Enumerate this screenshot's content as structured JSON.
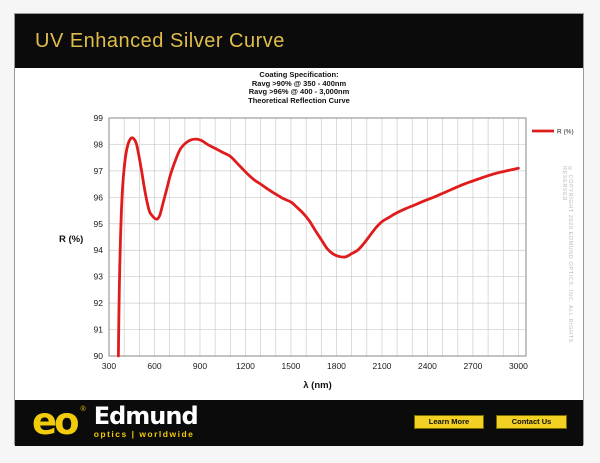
{
  "header": {
    "title": "UV Enhanced Silver Curve"
  },
  "chart": {
    "spec_lines": [
      "Coating Specification:",
      "Ravg >90% @ 350 - 400nm",
      "Ravg >96% @ 400 - 3,000nm",
      "Theoretical Reflection Curve"
    ],
    "copyright": "© COPYRIGHT 2020 EDMUND OPTICS, INC. ALL RIGHTS RESERVED"
  },
  "chart_data": {
    "type": "line",
    "title": "Coating Specification: Ravg >90% @ 350 - 400nm; Ravg >96% @ 400 - 3,000nm; Theoretical Reflection Curve",
    "xlabel": "λ (nm)",
    "ylabel": "R (%)",
    "xlim": [
      300,
      3050
    ],
    "ylim": [
      90,
      99
    ],
    "x_ticks": [
      300,
      600,
      900,
      1200,
      1500,
      1800,
      2100,
      2400,
      2700,
      3000
    ],
    "y_ticks": [
      90,
      91,
      92,
      93,
      94,
      95,
      96,
      97,
      98,
      99
    ],
    "grid": true,
    "minor_x_step": 100,
    "legend_position": "right",
    "series": [
      {
        "name": "R (%)",
        "color": "#e01b1b",
        "points": [
          [
            362,
            90
          ],
          [
            364,
            91
          ],
          [
            367,
            92.2
          ],
          [
            371,
            93.4
          ],
          [
            376,
            94.5
          ],
          [
            382,
            95.5
          ],
          [
            390,
            96.4
          ],
          [
            400,
            97.1
          ],
          [
            412,
            97.65
          ],
          [
            425,
            98.0
          ],
          [
            440,
            98.2
          ],
          [
            455,
            98.25
          ],
          [
            468,
            98.18
          ],
          [
            482,
            98.0
          ],
          [
            498,
            97.55
          ],
          [
            515,
            97.0
          ],
          [
            532,
            96.4
          ],
          [
            550,
            95.85
          ],
          [
            568,
            95.45
          ],
          [
            586,
            95.3
          ],
          [
            602,
            95.2
          ],
          [
            618,
            95.18
          ],
          [
            635,
            95.32
          ],
          [
            655,
            95.75
          ],
          [
            678,
            96.25
          ],
          [
            705,
            96.85
          ],
          [
            735,
            97.35
          ],
          [
            768,
            97.8
          ],
          [
            805,
            98.05
          ],
          [
            840,
            98.17
          ],
          [
            875,
            98.2
          ],
          [
            910,
            98.15
          ],
          [
            950,
            98.0
          ],
          [
            1000,
            97.85
          ],
          [
            1050,
            97.7
          ],
          [
            1100,
            97.55
          ],
          [
            1140,
            97.32
          ],
          [
            1180,
            97.08
          ],
          [
            1220,
            96.85
          ],
          [
            1260,
            96.65
          ],
          [
            1300,
            96.5
          ],
          [
            1350,
            96.3
          ],
          [
            1400,
            96.12
          ],
          [
            1450,
            95.95
          ],
          [
            1500,
            95.82
          ],
          [
            1540,
            95.62
          ],
          [
            1580,
            95.4
          ],
          [
            1620,
            95.12
          ],
          [
            1660,
            94.75
          ],
          [
            1700,
            94.4
          ],
          [
            1740,
            94.05
          ],
          [
            1780,
            93.85
          ],
          [
            1820,
            93.76
          ],
          [
            1860,
            93.75
          ],
          [
            1900,
            93.87
          ],
          [
            1940,
            94.0
          ],
          [
            1980,
            94.25
          ],
          [
            2020,
            94.55
          ],
          [
            2060,
            94.85
          ],
          [
            2100,
            95.08
          ],
          [
            2140,
            95.22
          ],
          [
            2200,
            95.42
          ],
          [
            2260,
            95.58
          ],
          [
            2320,
            95.72
          ],
          [
            2380,
            95.87
          ],
          [
            2440,
            96.0
          ],
          [
            2500,
            96.15
          ],
          [
            2560,
            96.3
          ],
          [
            2620,
            96.45
          ],
          [
            2680,
            96.58
          ],
          [
            2740,
            96.7
          ],
          [
            2800,
            96.82
          ],
          [
            2860,
            96.92
          ],
          [
            2920,
            97.0
          ],
          [
            3000,
            97.1
          ]
        ]
      }
    ]
  },
  "footer": {
    "logo": {
      "eo": "eo",
      "reg": "®",
      "name": "Edmund",
      "tagline": "optics | worldwide"
    },
    "buttons": [
      {
        "label": "Learn More"
      },
      {
        "label": "Contact Us"
      }
    ]
  },
  "colors": {
    "header_bg": "#0b0b0b",
    "title_gold": "#e0be4b",
    "logo_yellow": "#f2cb0b",
    "button_yellow": "#f2d024",
    "curve_red": "#e01b1b",
    "grid_gray": "#cccccc"
  }
}
